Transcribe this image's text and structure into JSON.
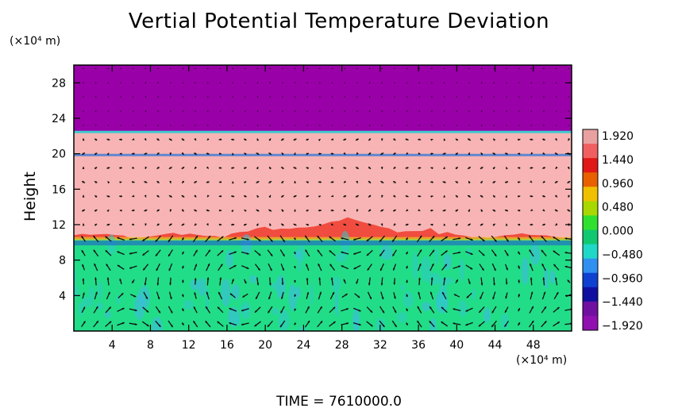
{
  "title": "Vertial Potential Temperature Deviation",
  "y_unit": "(×10⁴ m)",
  "x_unit": "(×10⁴ m)",
  "ylabel": "Height",
  "time_label": "TIME  =  7610000.0",
  "chart_data": {
    "type": "heatmap",
    "title": "Vertial Potential Temperature Deviation",
    "xlabel": "",
    "ylabel": "Height",
    "x_unit": "(×10⁴ m)",
    "y_unit": "(×10⁴ m)",
    "xlim": [
      0,
      52
    ],
    "ylim": [
      0,
      30
    ],
    "x_ticks": [
      "4",
      "8",
      "12",
      "16",
      "20",
      "24",
      "28",
      "32",
      "36",
      "40",
      "44",
      "48"
    ],
    "y_ticks": [
      "4",
      "8",
      "12",
      "16",
      "20",
      "24",
      "28"
    ],
    "x_tick_values": [
      4,
      8,
      12,
      16,
      20,
      24,
      28,
      32,
      36,
      40,
      44,
      48
    ],
    "y_tick_values": [
      4,
      8,
      12,
      16,
      20,
      24,
      28
    ],
    "colorbar": {
      "labels": [
        "1.920",
        "1.440",
        "0.960",
        "0.480",
        "0.000",
        "−0.480",
        "−0.960",
        "−1.440",
        "−1.920"
      ],
      "values": [
        1.92,
        1.44,
        0.96,
        0.48,
        0.0,
        -0.48,
        -0.96,
        -1.44,
        -1.92
      ],
      "colors": [
        "#e8a0a0",
        "#f06060",
        "#e01818",
        "#e86000",
        "#f0c000",
        "#a8d800",
        "#30e030",
        "#10c870",
        "#20d8c8",
        "#3090f0",
        "#1040d0",
        "#1010a0",
        "#7010a0",
        "#9010b0"
      ]
    },
    "regions": [
      {
        "name": "upper",
        "y_range": [
          22.5,
          30
        ],
        "value": -1.92,
        "color": "#9a00a8"
      },
      {
        "name": "middle",
        "y_range": [
          10.5,
          22.5
        ],
        "value": 1.92,
        "color": "#f8b4b4"
      },
      {
        "name": "lower",
        "y_range": [
          0,
          10.5
        ],
        "value": 0.0,
        "color": "#22dd88"
      }
    ],
    "vectors": "wind vectors shown as arrows across domain"
  }
}
